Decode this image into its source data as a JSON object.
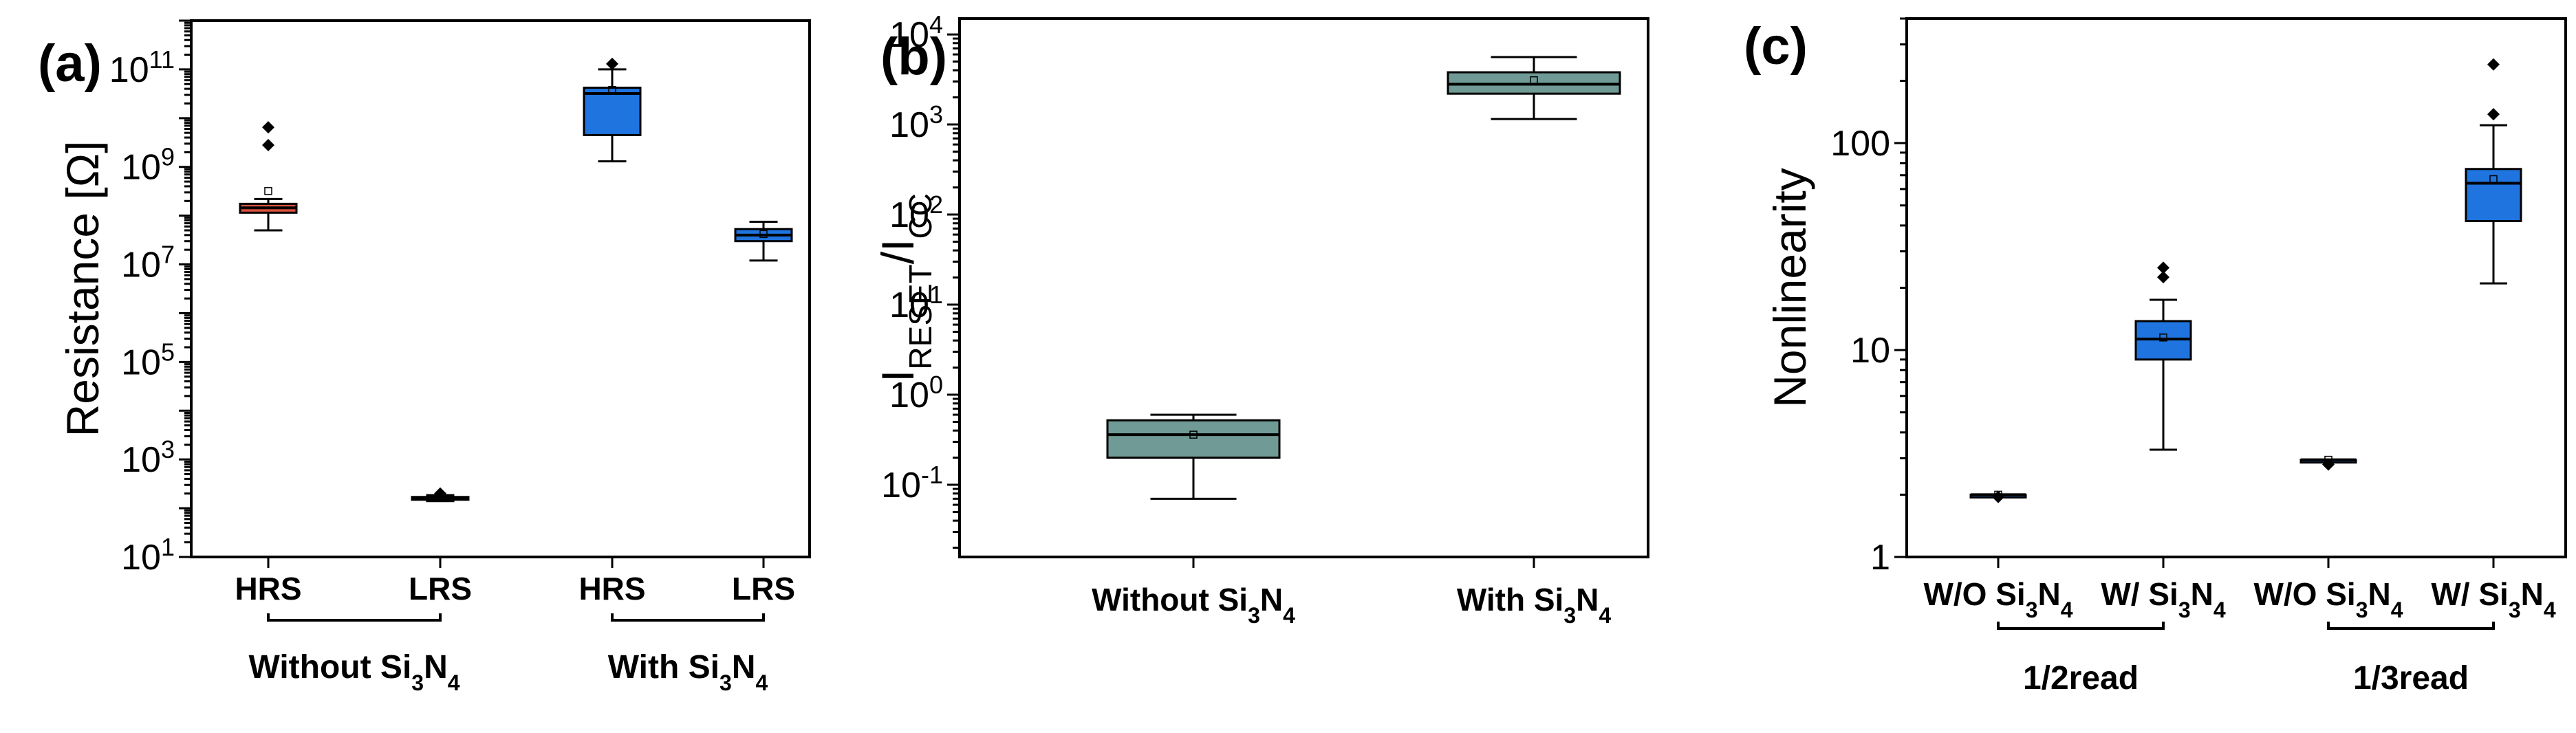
{
  "colors": {
    "red_box": "#d9503f",
    "blue_box": "#1f74e0",
    "teal_box": "#6f9a95",
    "axis": "#000000"
  },
  "chart_data": [
    {
      "panel": "(a)",
      "type": "box",
      "ylabel": "Resistance [Ω]",
      "yscale": "log",
      "ylim": [
        10,
        1000000000000.0
      ],
      "yticks": [
        {
          "value": 10,
          "base": "10",
          "exp": "1"
        },
        {
          "value": 1000,
          "base": "10",
          "exp": "3"
        },
        {
          "value": 100000,
          "base": "10",
          "exp": "5"
        },
        {
          "value": 10000000,
          "base": "10",
          "exp": "7"
        },
        {
          "value": 1000000000,
          "base": "10",
          "exp": "9"
        },
        {
          "value": 100000000000,
          "base": "10",
          "exp": "11"
        }
      ],
      "categories": [
        "HRS",
        "LRS",
        "HRS",
        "LRS"
      ],
      "groups": [
        {
          "label": "Without Si",
          "sub1": "3",
          "mid": "N",
          "sub2": "4",
          "from": 0,
          "to": 1
        },
        {
          "label": "With Si",
          "sub1": "3",
          "mid": "N",
          "sub2": "4",
          "from": 2,
          "to": 3
        }
      ],
      "boxes": [
        {
          "category": "HRS",
          "group": "Without Si3N4",
          "color": "red",
          "whisker_low": 50000000.0,
          "q1": 115000000.0,
          "median": 145000000.0,
          "q3": 175000000.0,
          "whisker_high": 220000000.0,
          "mean": 320000000.0,
          "outliers": [
            2800000000.0,
            6500000000.0
          ]
        },
        {
          "category": "LRS",
          "group": "Without Si3N4",
          "color": "blue",
          "whisker_low": 140,
          "q1": 150,
          "median": 160,
          "q3": 170,
          "whisker_high": 185,
          "mean": 165,
          "outliers": [
            200
          ]
        },
        {
          "category": "HRS",
          "group": "With Si3N4",
          "color": "blue",
          "whisker_low": 1300000000.0,
          "q1": 4500000000.0,
          "median": 32000000000.0,
          "q3": 42000000000.0,
          "whisker_high": 100000000000.0,
          "mean": 38000000000.0,
          "outliers": [
            130000000000.0
          ]
        },
        {
          "category": "LRS",
          "group": "With Si3N4",
          "color": "blue",
          "whisker_low": 12000000.0,
          "q1": 30000000.0,
          "median": 40000000.0,
          "q3": 53000000.0,
          "whisker_high": 75000000.0,
          "mean": 42000000.0,
          "outliers": []
        }
      ]
    },
    {
      "panel": "(b)",
      "type": "box",
      "ylabel_main": "I",
      "ylabel_sub1": "RESET",
      "ylabel_mid": "/I",
      "ylabel_sub2": "CC",
      "yscale": "log",
      "ylim": [
        0.0158,
        15000
      ],
      "yticks": [
        {
          "value": 0.1,
          "base": "10",
          "exp": "-1"
        },
        {
          "value": 1,
          "base": "10",
          "exp": "0"
        },
        {
          "value": 10,
          "base": "10",
          "exp": "1"
        },
        {
          "value": 100,
          "base": "10",
          "exp": "2"
        },
        {
          "value": 1000,
          "base": "10",
          "exp": "3"
        },
        {
          "value": 10000,
          "base": "10",
          "exp": "4"
        }
      ],
      "categories": [
        {
          "label": "Without Si",
          "sub1": "3",
          "mid": "N",
          "sub2": "4"
        },
        {
          "label": "With Si",
          "sub1": "3",
          "mid": "N",
          "sub2": "4"
        }
      ],
      "boxes": [
        {
          "category": "Without Si3N4",
          "color": "teal",
          "whisker_low": 0.07,
          "q1": 0.2,
          "median": 0.36,
          "q3": 0.52,
          "whisker_high": 0.6,
          "mean": 0.36,
          "outliers": []
        },
        {
          "category": "With Si3N4",
          "color": "teal",
          "whisker_low": 1150,
          "q1": 2200,
          "median": 2800,
          "q3": 3800,
          "whisker_high": 5600,
          "mean": 3100,
          "outliers": []
        }
      ]
    },
    {
      "panel": "(c)",
      "type": "box",
      "ylabel": "Nonlinearity",
      "yscale": "log",
      "ylim": [
        1,
        400
      ],
      "yticks": [
        {
          "value": 1,
          "label": "1"
        },
        {
          "value": 10,
          "label": "10"
        },
        {
          "value": 100,
          "label": "100"
        }
      ],
      "categories": [
        {
          "label": "W/O Si",
          "sub1": "3",
          "mid": "N",
          "sub2": "4"
        },
        {
          "label": "W/ Si",
          "sub1": "3",
          "mid": "N",
          "sub2": "4"
        },
        {
          "label": "W/O Si",
          "sub1": "3",
          "mid": "N",
          "sub2": "4"
        },
        {
          "label": "W/ Si",
          "sub1": "3",
          "mid": "N",
          "sub2": "4"
        }
      ],
      "groups": [
        {
          "label": "1/2read",
          "from": 0,
          "to": 1
        },
        {
          "label": "1/3read",
          "from": 2,
          "to": 3
        }
      ],
      "boxes": [
        {
          "category": "W/O Si3N4",
          "group": "1/2read",
          "color": "blue",
          "whisker_low": 2.0,
          "q1": 2.0,
          "median": 2.0,
          "q3": 2.0,
          "whisker_high": 2.0,
          "mean": 2.0,
          "outliers": [
            1.95
          ]
        },
        {
          "category": "W/ Si3N4",
          "group": "1/2read",
          "color": "blue",
          "whisker_low": 3.3,
          "q1": 9.0,
          "median": 11.3,
          "q3": 13.8,
          "whisker_high": 17.5,
          "mean": 11.5,
          "outliers": [
            22.5,
            25
          ]
        },
        {
          "category": "W/O Si3N4",
          "group": "1/3read",
          "color": "blue",
          "whisker_low": 2.95,
          "q1": 2.95,
          "median": 2.95,
          "q3": 2.95,
          "whisker_high": 2.95,
          "mean": 2.95,
          "outliers": [
            2.8
          ]
        },
        {
          "category": "W/ Si3N4",
          "group": "1/3read",
          "color": "blue",
          "whisker_low": 21,
          "q1": 42,
          "median": 64,
          "q3": 75,
          "whisker_high": 122,
          "mean": 67,
          "outliers": [
            138,
            240
          ]
        }
      ]
    }
  ]
}
